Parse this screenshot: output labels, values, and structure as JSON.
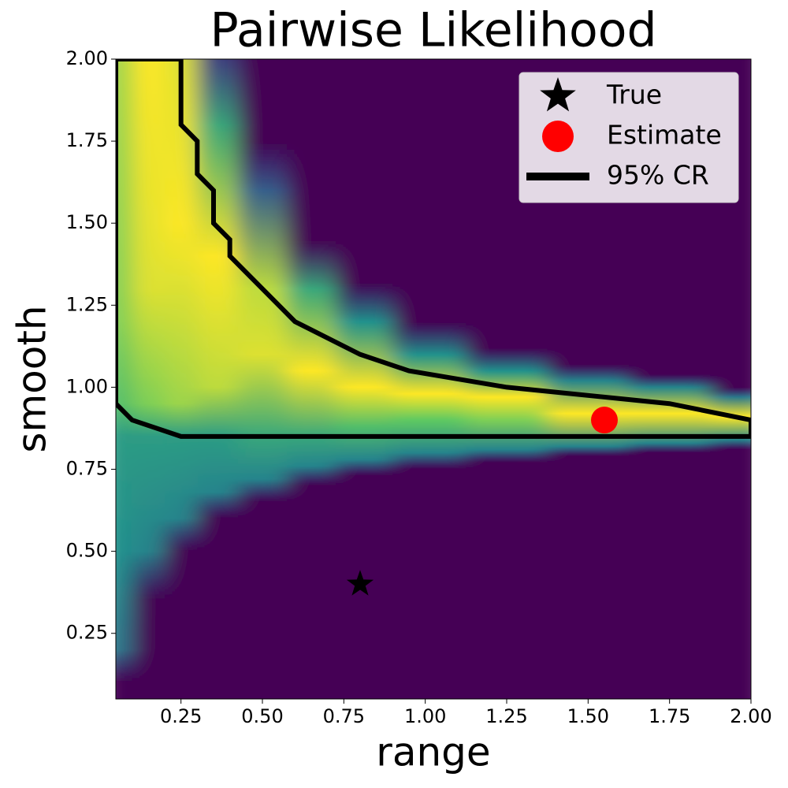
{
  "chart_data": {
    "type": "heatmap",
    "title": "Pairwise Likelihood",
    "x_label": "range",
    "y_label": "smooth",
    "xlim": [
      0.05,
      2.0
    ],
    "ylim": [
      0.05,
      2.0
    ],
    "xticks": [
      {
        "value": 0.25,
        "label": "0.25"
      },
      {
        "value": 0.5,
        "label": "0.50"
      },
      {
        "value": 0.75,
        "label": "0.75"
      },
      {
        "value": 1.0,
        "label": "1.00"
      },
      {
        "value": 1.25,
        "label": "1.25"
      },
      {
        "value": 1.5,
        "label": "1.50"
      },
      {
        "value": 1.75,
        "label": "1.75"
      },
      {
        "value": 2.0,
        "label": "2.00"
      }
    ],
    "yticks": [
      {
        "value": 0.25,
        "label": "0.25"
      },
      {
        "value": 0.5,
        "label": "0.50"
      },
      {
        "value": 0.75,
        "label": "0.75"
      },
      {
        "value": 1.0,
        "label": "1.00"
      },
      {
        "value": 1.25,
        "label": "1.25"
      },
      {
        "value": 1.5,
        "label": "1.50"
      },
      {
        "value": 1.75,
        "label": "1.75"
      },
      {
        "value": 2.0,
        "label": "2.00"
      }
    ],
    "heatmap": {
      "columns": [
        {
          "x": 0.05,
          "profile": [
            [
              0.1,
              0
            ],
            [
              0.2,
              0.4
            ],
            [
              0.5,
              0.5
            ],
            [
              0.85,
              0.55
            ],
            [
              0.95,
              0.7
            ],
            [
              1.2,
              0.8
            ],
            [
              2.0,
              0.85
            ]
          ]
        },
        {
          "x": 0.15,
          "profile": [
            [
              0.35,
              0
            ],
            [
              0.5,
              0.45
            ],
            [
              0.85,
              0.55
            ],
            [
              0.95,
              0.8
            ],
            [
              1.3,
              0.95
            ],
            [
              2.0,
              1
            ]
          ]
        },
        {
          "x": 0.25,
          "profile": [
            [
              0.5,
              0
            ],
            [
              0.6,
              0.45
            ],
            [
              0.85,
              0.55
            ],
            [
              0.95,
              0.85
            ],
            [
              1.5,
              1
            ],
            [
              2.0,
              0.95
            ]
          ]
        },
        {
          "x": 0.35,
          "profile": [
            [
              0.6,
              0
            ],
            [
              0.68,
              0.45
            ],
            [
              0.85,
              0.55
            ],
            [
              1.0,
              0.9
            ],
            [
              1.4,
              1
            ],
            [
              1.8,
              0.6
            ],
            [
              2.0,
              0.2
            ]
          ]
        },
        {
          "x": 0.5,
          "profile": [
            [
              0.65,
              0
            ],
            [
              0.72,
              0.45
            ],
            [
              0.85,
              0.6
            ],
            [
              1.1,
              0.95
            ],
            [
              1.3,
              0.9
            ],
            [
              1.6,
              0.3
            ],
            [
              1.75,
              0
            ]
          ]
        },
        {
          "x": 0.65,
          "profile": [
            [
              0.7,
              0
            ],
            [
              0.76,
              0.45
            ],
            [
              0.85,
              0.6
            ],
            [
              1.05,
              1
            ],
            [
              1.3,
              0.6
            ],
            [
              1.45,
              0
            ]
          ]
        },
        {
          "x": 0.8,
          "profile": [
            [
              0.73,
              0
            ],
            [
              0.78,
              0.45
            ],
            [
              0.88,
              0.7
            ],
            [
              1.0,
              1
            ],
            [
              1.2,
              0.5
            ],
            [
              1.32,
              0
            ]
          ]
        },
        {
          "x": 1.0,
          "profile": [
            [
              0.75,
              0
            ],
            [
              0.8,
              0.45
            ],
            [
              0.9,
              0.75
            ],
            [
              0.98,
              1
            ],
            [
              1.1,
              0.5
            ],
            [
              1.2,
              0
            ]
          ]
        },
        {
          "x": 1.25,
          "profile": [
            [
              0.77,
              0
            ],
            [
              0.81,
              0.45
            ],
            [
              0.9,
              0.8
            ],
            [
              0.97,
              1
            ],
            [
              1.05,
              0.5
            ],
            [
              1.12,
              0
            ]
          ]
        },
        {
          "x": 1.5,
          "profile": [
            [
              0.79,
              0
            ],
            [
              0.82,
              0.45
            ],
            [
              0.92,
              1
            ],
            [
              1.02,
              0.45
            ],
            [
              1.07,
              0
            ]
          ]
        },
        {
          "x": 1.75,
          "profile": [
            [
              0.8,
              0
            ],
            [
              0.83,
              0.45
            ],
            [
              0.92,
              1
            ],
            [
              1.0,
              0.45
            ],
            [
              1.04,
              0
            ]
          ]
        },
        {
          "x": 2.0,
          "profile": [
            [
              0.81,
              0
            ],
            [
              0.84,
              0.45
            ],
            [
              0.91,
              1
            ],
            [
              0.97,
              0.4
            ],
            [
              1.0,
              0
            ]
          ]
        }
      ]
    },
    "series": [
      {
        "name": "True",
        "color": "#000000",
        "marker": "star",
        "x": [
          0.8
        ],
        "values": [
          0.4
        ]
      },
      {
        "name": "Estimate",
        "color": "#ff0000",
        "marker": "circle",
        "x": [
          1.55
        ],
        "values": [
          0.9
        ]
      },
      {
        "name": "95% CR",
        "color": "#000000",
        "marker": "line",
        "x": [
          0.05,
          0.05,
          0.25,
          0.25,
          0.3,
          0.3,
          0.35,
          0.35,
          0.4,
          0.4,
          0.6,
          0.8,
          0.95,
          1.25,
          1.75,
          2.0,
          2.0,
          0.25,
          0.1,
          0.05
        ],
        "values": [
          0.95,
          2.0,
          2.0,
          1.8,
          1.75,
          1.65,
          1.6,
          1.5,
          1.45,
          1.4,
          1.2,
          1.1,
          1.05,
          1.0,
          0.95,
          0.9,
          0.85,
          0.85,
          0.9,
          0.95
        ]
      }
    ],
    "legend": "upper right"
  }
}
